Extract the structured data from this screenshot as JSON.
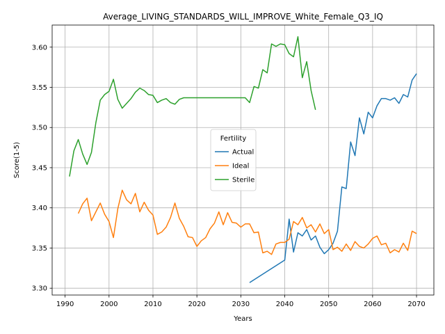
{
  "chart_data": {
    "type": "line",
    "title": "Average_LIVING_STANDARDS_WILL_IMPROVE_White_Female_Q3_IQ",
    "xlabel": "Years",
    "ylabel": "Score(1-5)",
    "xlim": [
      1987.05,
      2073.95
    ],
    "ylim": [
      3.2915,
      3.6275
    ],
    "xticks": [
      1990,
      2000,
      2010,
      2020,
      2030,
      2040,
      2050,
      2060,
      2070
    ],
    "yticks": [
      3.3,
      3.35,
      3.4,
      3.45,
      3.5,
      3.55,
      3.6
    ],
    "ytick_labels": [
      "3.30",
      "3.35",
      "3.40",
      "3.45",
      "3.50",
      "3.55",
      "3.60"
    ],
    "grid": true,
    "legend": {
      "title": "Fertility",
      "placement": "center-right"
    },
    "series": [
      {
        "name": "Actual",
        "color": "#1f77b4",
        "x": [
          2032,
          2040,
          2041,
          2042,
          2043,
          2044,
          2045,
          2046,
          2047,
          2048,
          2049,
          2050,
          2051,
          2052,
          2053,
          2054,
          2055,
          2056,
          2057,
          2058,
          2059,
          2060,
          2061,
          2062,
          2063,
          2064,
          2065,
          2066,
          2067,
          2068,
          2069,
          2070
        ],
        "y": [
          3.307,
          3.335,
          3.386,
          3.345,
          3.369,
          3.365,
          3.373,
          3.36,
          3.365,
          3.351,
          3.343,
          3.348,
          3.356,
          3.371,
          3.426,
          3.424,
          3.482,
          3.465,
          3.512,
          3.492,
          3.519,
          3.512,
          3.527,
          3.536,
          3.536,
          3.534,
          3.537,
          3.53,
          3.541,
          3.538,
          3.559,
          3.567
        ]
      },
      {
        "name": "Ideal",
        "color": "#ff7f0e",
        "x": [
          1993,
          1994,
          1995,
          1996,
          1997,
          1998,
          1999,
          2000,
          2001,
          2002,
          2003,
          2004,
          2005,
          2006,
          2007,
          2008,
          2009,
          2010,
          2011,
          2012,
          2013,
          2014,
          2015,
          2016,
          2017,
          2018,
          2019,
          2020,
          2021,
          2022,
          2023,
          2024,
          2025,
          2026,
          2027,
          2028,
          2029,
          2030,
          2031,
          2032,
          2033,
          2034,
          2035,
          2036,
          2037,
          2038,
          2039,
          2040,
          2041,
          2042,
          2043,
          2044,
          2045,
          2046,
          2047,
          2048,
          2049,
          2050,
          2051,
          2052,
          2053,
          2054,
          2055,
          2056,
          2057,
          2058,
          2059,
          2060,
          2061,
          2062,
          2063,
          2064,
          2065,
          2066,
          2067,
          2068,
          2069,
          2070
        ],
        "y": [
          3.393,
          3.405,
          3.412,
          3.384,
          3.395,
          3.406,
          3.392,
          3.383,
          3.363,
          3.399,
          3.422,
          3.41,
          3.405,
          3.418,
          3.395,
          3.407,
          3.397,
          3.391,
          3.367,
          3.37,
          3.376,
          3.388,
          3.406,
          3.387,
          3.377,
          3.364,
          3.363,
          3.352,
          3.359,
          3.363,
          3.374,
          3.381,
          3.395,
          3.379,
          3.394,
          3.382,
          3.381,
          3.376,
          3.38,
          3.38,
          3.369,
          3.37,
          3.344,
          3.346,
          3.342,
          3.355,
          3.357,
          3.357,
          3.361,
          3.383,
          3.379,
          3.388,
          3.375,
          3.379,
          3.37,
          3.38,
          3.368,
          3.373,
          3.348,
          3.351,
          3.346,
          3.355,
          3.347,
          3.358,
          3.352,
          3.35,
          3.355,
          3.362,
          3.365,
          3.354,
          3.356,
          3.344,
          3.348,
          3.345,
          3.356,
          3.347,
          3.371,
          3.368
        ]
      },
      {
        "name": "Sterile",
        "color": "#2ca02c",
        "x": [
          1991,
          1992,
          1993,
          1994,
          1995,
          1996,
          1997,
          1998,
          1999,
          2000,
          2001,
          2002,
          2003,
          2004,
          2005,
          2006,
          2007,
          2008,
          2009,
          2010,
          2011,
          2012,
          2013,
          2014,
          2015,
          2016,
          2017,
          2018,
          2019,
          2020,
          2021,
          2022,
          2023,
          2024,
          2025,
          2026,
          2027,
          2028,
          2029,
          2030,
          2031,
          2032,
          2033,
          2034,
          2035,
          2036,
          2037,
          2038,
          2039,
          2040,
          2041,
          2042,
          2043,
          2044,
          2045,
          2046,
          2047
        ],
        "y": [
          3.439,
          3.471,
          3.485,
          3.467,
          3.454,
          3.469,
          3.506,
          3.534,
          3.541,
          3.545,
          3.56,
          3.535,
          3.524,
          3.53,
          3.536,
          3.544,
          3.549,
          3.546,
          3.541,
          3.54,
          3.531,
          3.534,
          3.536,
          3.531,
          3.529,
          3.535,
          3.537,
          3.537,
          3.537,
          3.537,
          3.537,
          3.537,
          3.537,
          3.537,
          3.537,
          3.537,
          3.537,
          3.537,
          3.537,
          3.537,
          3.537,
          3.531,
          3.551,
          3.549,
          3.572,
          3.568,
          3.604,
          3.601,
          3.604,
          3.603,
          3.592,
          3.588,
          3.613,
          3.562,
          3.582,
          3.546,
          3.522
        ]
      }
    ]
  }
}
